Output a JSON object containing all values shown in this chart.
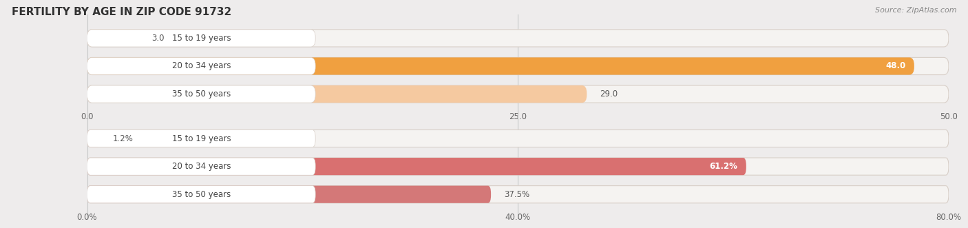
{
  "title": "FERTILITY BY AGE IN ZIP CODE 91732",
  "source": "Source: ZipAtlas.com",
  "background_color": "#eeecec",
  "top_chart": {
    "categories": [
      "15 to 19 years",
      "20 to 34 years",
      "35 to 50 years"
    ],
    "values": [
      3.0,
      48.0,
      29.0
    ],
    "xlim": [
      0,
      50
    ],
    "xticks": [
      0.0,
      25.0,
      50.0
    ],
    "xtick_labels": [
      "0.0",
      "25.0",
      "50.0"
    ],
    "bar_fill_colors": [
      "#f5c9a0",
      "#f0a040",
      "#f5c9a0"
    ],
    "bar_bg_color": "#f5f3f1",
    "bar_border_color": "#d8cfc8",
    "value_inside_threshold": 0.75,
    "value_inside_color": "white",
    "value_outside_color": "#555555"
  },
  "bottom_chart": {
    "categories": [
      "15 to 19 years",
      "20 to 34 years",
      "35 to 50 years"
    ],
    "values": [
      1.2,
      61.2,
      37.5
    ],
    "xlim": [
      0,
      80
    ],
    "xticks": [
      0.0,
      40.0,
      80.0
    ],
    "xtick_labels": [
      "0.0%",
      "40.0%",
      "80.0%"
    ],
    "bar_fill_colors": [
      "#f0b0a8",
      "#d97070",
      "#d47878"
    ],
    "bar_bg_color": "#f5f3f1",
    "bar_border_color": "#d8cfc8",
    "value_inside_threshold": 0.75,
    "value_inside_color": "white",
    "value_outside_color": "#555555"
  }
}
